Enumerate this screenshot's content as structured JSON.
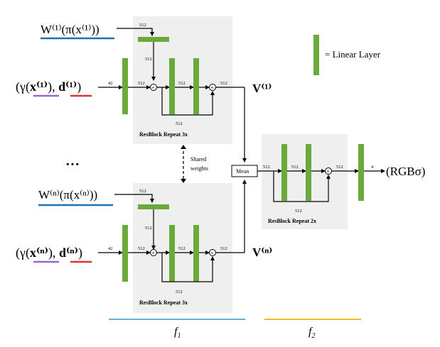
{
  "legend": {
    "label": "= Linear Layer"
  },
  "inputs": {
    "w1": "W⁽¹⁾(π(x⁽¹⁾))",
    "g1_open": "(γ(",
    "g1_x": "x⁽¹⁾",
    "g1_mid": "), ",
    "g1_d": "d⁽¹⁾",
    "g1_close": ")",
    "wn": "W⁽ⁿ⁾(π(x⁽ⁿ⁾))",
    "gn_open": "(γ(",
    "gn_x": "x⁽ⁿ⁾",
    "gn_mid": "), ",
    "gn_d": "d⁽ⁿ⁾",
    "gn_close": ")",
    "ellipsis": "…"
  },
  "dims": {
    "d42": "42",
    "d512": "512",
    "d4": "4"
  },
  "outputs": {
    "v1": "V⁽¹⁾",
    "vn": "V⁽ⁿ⁾",
    "rgb": "(RGBσ)"
  },
  "blocks": {
    "resblock": "ResBlock",
    "repeat3": "Repeat 3x",
    "repeat2": "Repeat 2x",
    "mean": "Mean",
    "shared1": "Shared",
    "shared2": "weights",
    "plus": "+"
  },
  "bottom": {
    "f1": "f",
    "f1_sub": "1",
    "f2": "f",
    "f2_sub": "2"
  },
  "colors": {
    "linear_layer": "#6aaa3a",
    "panel": "#efefef",
    "underline_blue": "#1f6fb2",
    "underline_purple": "#9966cc",
    "underline_red": "#e03030",
    "bar_f1": "#6aaed6",
    "bar_f2": "#e8c02a"
  }
}
